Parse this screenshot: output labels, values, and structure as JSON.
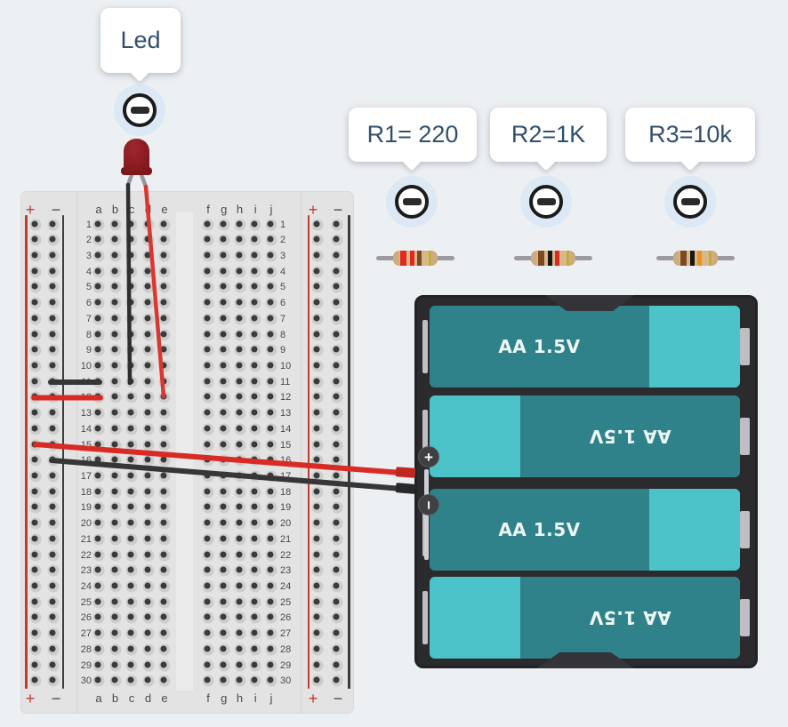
{
  "app": {
    "description": "circuit editor canvas with breadboard, LED, resistors and 4xAA battery pack"
  },
  "tooltips": {
    "led": {
      "label": "Led"
    },
    "r1": {
      "label": "R1= 220"
    },
    "r2": {
      "label": "R2=1K"
    },
    "r3": {
      "label": "R3=10k"
    }
  },
  "icons": {
    "type": "minus-circle",
    "count": 4
  },
  "breadboard": {
    "rail_plus": "+",
    "rail_minus": "−",
    "left_columns": [
      "a",
      "b",
      "c",
      "d",
      "e"
    ],
    "right_columns": [
      "f",
      "g",
      "h",
      "i",
      "j"
    ],
    "row_numbers": [
      1,
      2,
      3,
      4,
      5,
      6,
      7,
      8,
      9,
      10,
      11,
      12,
      13,
      14,
      15,
      16,
      17,
      18,
      19,
      20,
      21,
      22,
      23,
      24,
      25,
      26,
      27,
      28,
      29,
      30
    ],
    "colors": {
      "base": "#e2e3e2",
      "gap": "#eaebea",
      "hole": "#3b3b3b",
      "hole_ring": "#cdcdcd",
      "rail_red": "#c23b2e",
      "rail_black": "#3c3c3c",
      "label": "#4a4a4a"
    }
  },
  "led": {
    "body_color": "#8b1d22",
    "cathode_wire": "#2e2e31",
    "anode_wire": "#d93831"
  },
  "resistors": [
    {
      "name": "R1",
      "value": "220",
      "bands": [
        "red",
        "red",
        "brown",
        "gold"
      ],
      "band_colors": [
        "#e02a21",
        "#e02a21",
        "#7b4a22",
        "#bfae3c"
      ]
    },
    {
      "name": "R2",
      "value": "1K",
      "bands": [
        "brown",
        "black",
        "red",
        "gold"
      ],
      "band_colors": [
        "#7b4a22",
        "#161616",
        "#e02a21",
        "#bfae3c"
      ]
    },
    {
      "name": "R3",
      "value": "10k",
      "bands": [
        "brown",
        "black",
        "orange",
        "gold"
      ],
      "band_colors": [
        "#7b4a22",
        "#161616",
        "#f2901e",
        "#bfae3c"
      ]
    }
  ],
  "battery_pack": {
    "cells": [
      {
        "label": "AA 1.5V",
        "orientation": "up"
      },
      {
        "label": "AA 1.5V",
        "orientation": "down"
      },
      {
        "label": "AA 1.5V",
        "orientation": "up"
      },
      {
        "label": "AA 1.5V",
        "orientation": "down"
      }
    ],
    "terminals": {
      "positive": "+",
      "negative": "−"
    },
    "colors": {
      "case": "#2b2b2e",
      "cell_dark": "#30828a",
      "cell_light": "#4cc3c9",
      "contact": "#bfbfc3",
      "text": "#eef6f6"
    }
  },
  "wires": {
    "red": "#d92b25",
    "black": "#363639"
  }
}
